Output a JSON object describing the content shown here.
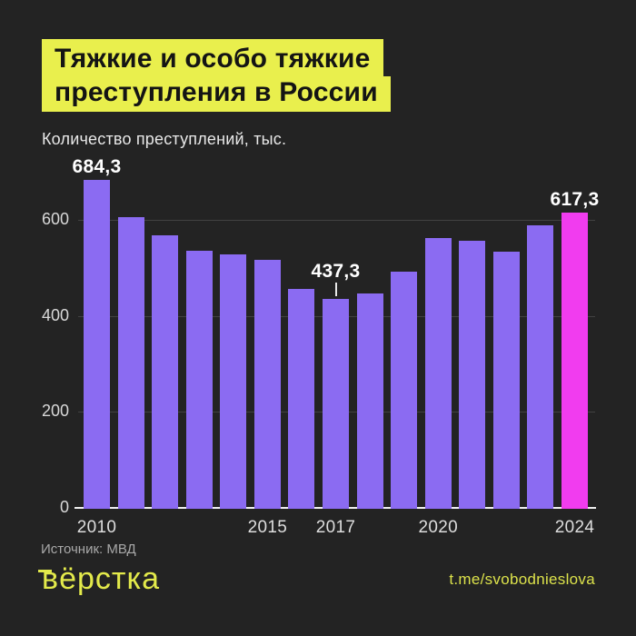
{
  "page": {
    "background_color": "#232323",
    "accent_yellow": "#e9ef4d",
    "bar_purple": "#8b6bf2",
    "bar_pink": "#f13cef"
  },
  "header": {
    "title_line1": "Тяжкие и особо тяжкие",
    "title_line2": "преступления в России",
    "subtitle": "Количество преступлений, тыс."
  },
  "chart_data": {
    "type": "bar",
    "title": "Тяжкие и особо тяжкие преступления в России",
    "ylabel": "Количество преступлений, тыс.",
    "xlabel": "",
    "categories": [
      2010,
      2011,
      2012,
      2013,
      2014,
      2015,
      2016,
      2017,
      2018,
      2019,
      2020,
      2021,
      2022,
      2023,
      2024
    ],
    "values": [
      684.3,
      607.5,
      570,
      537,
      530,
      519,
      457,
      437.3,
      448,
      493,
      563,
      559,
      536,
      590,
      617.3
    ],
    "ylim": [
      0,
      700
    ],
    "yticks": [
      0,
      200,
      400,
      600
    ],
    "xticks_shown": [
      "2010",
      "2015",
      "2017",
      "2020",
      "2024"
    ],
    "grid": "horizontal",
    "legend": "none",
    "bar_color": "#8b6bf2",
    "highlight_index": 14,
    "highlight_color": "#f13cef",
    "annotations": [
      {
        "index": 0,
        "text": "684,3",
        "pointer": false
      },
      {
        "index": 7,
        "text": "437,3",
        "pointer": true
      },
      {
        "index": 14,
        "text": "617,3",
        "pointer": false
      }
    ]
  },
  "footer": {
    "source": "Источник: МВД",
    "logo": "вёрстка",
    "telegram": "t.me/svobodnieslova"
  }
}
